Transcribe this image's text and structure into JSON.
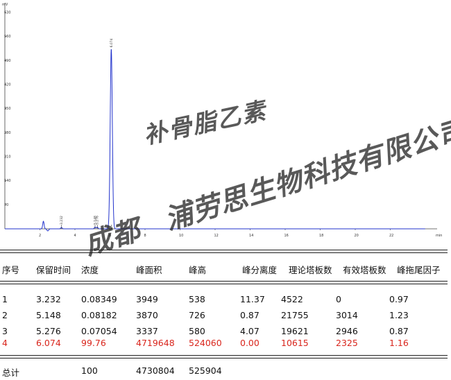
{
  "chart_data": {
    "type": "line",
    "y_unit": "mV",
    "x_unit": "min",
    "xlim": [
      0,
      24
    ],
    "ylim": [
      0,
      650
    ],
    "x_ticks": [
      2,
      4,
      6,
      8,
      10,
      12,
      14,
      16,
      18,
      20,
      22
    ],
    "y_ticks": [
      70,
      140,
      210,
      280,
      350,
      420,
      490,
      560,
      630
    ],
    "line_color": "#2233cc",
    "grid": false,
    "peaks": [
      {
        "rt": 2.2,
        "height": 22,
        "label": ""
      },
      {
        "rt": 3.232,
        "height": 4,
        "label": "3.232"
      },
      {
        "rt": 5.148,
        "height": 5,
        "label": "5.148"
      },
      {
        "rt": 5.276,
        "height": 5,
        "label": "5.276"
      },
      {
        "rt": 6.074,
        "height": 524,
        "label": "6.074"
      }
    ]
  },
  "table": {
    "headers": [
      "序号",
      "保留时间",
      "浓度",
      "峰面积",
      "峰高",
      "峰分离度",
      "理论塔板数",
      "有效塔板数",
      "峰拖尾因子"
    ],
    "rows": [
      [
        "1",
        "3.232",
        "0.08349",
        "3949",
        "538",
        "11.37",
        "4522",
        "0",
        "0.97"
      ],
      [
        "2",
        "5.148",
        "0.08182",
        "3870",
        "726",
        "0.87",
        "21755",
        "3014",
        "1.23"
      ],
      [
        "3",
        "5.276",
        "0.07054",
        "3337",
        "580",
        "4.07",
        "19621",
        "2946",
        "0.87"
      ],
      [
        "4",
        "6.074",
        "99.76",
        "4719648",
        "524060",
        "0.00",
        "10615",
        "2325",
        "1.16"
      ]
    ],
    "highlight_row": 3,
    "highlight_color": "#d9251c",
    "total": {
      "label": "总计",
      "concentration": "100",
      "area": "4730804",
      "height": "525904"
    }
  },
  "watermarks": [
    "补骨脂乙素",
    "成都浦劳思生物科技有限公司"
  ]
}
